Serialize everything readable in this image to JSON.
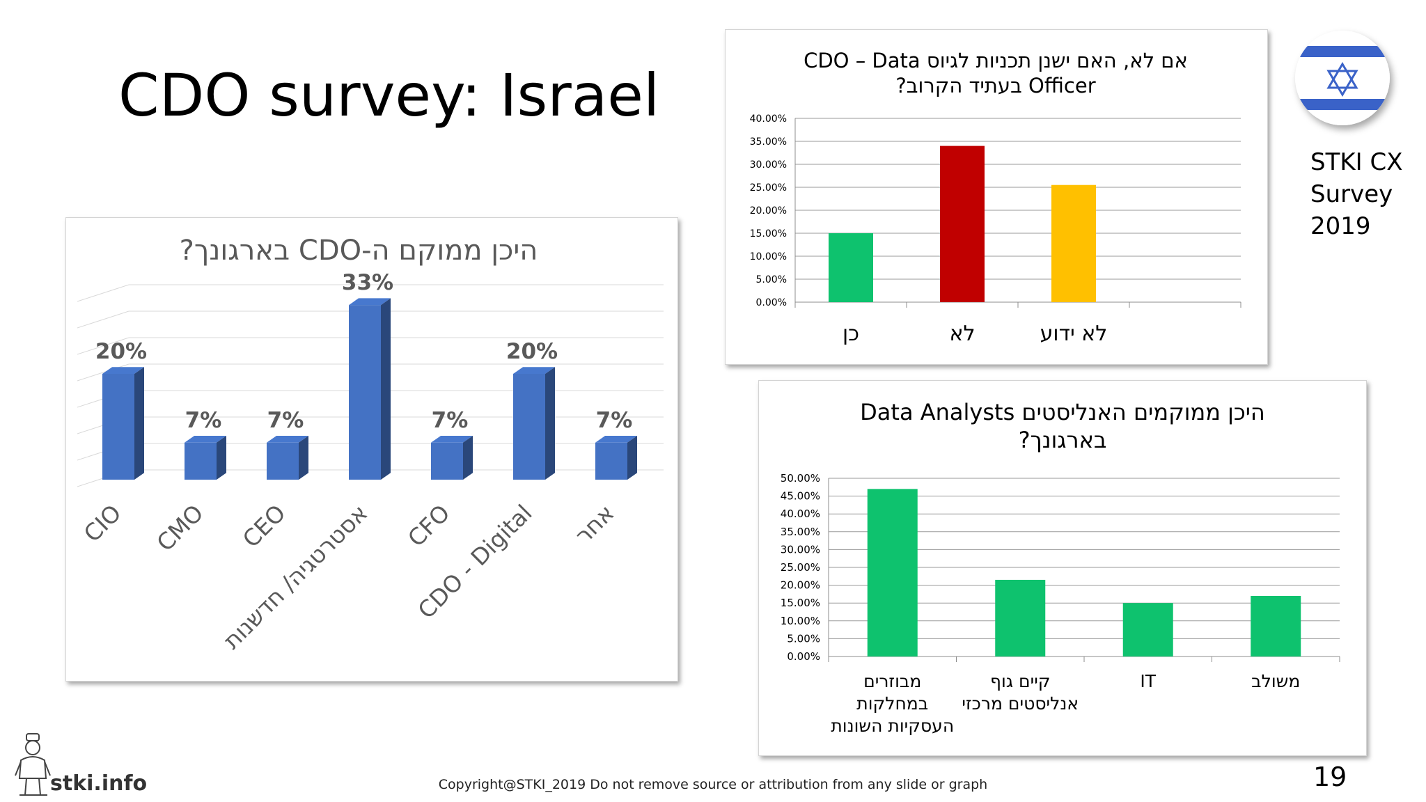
{
  "slide": {
    "title": "CDO survey: Israel",
    "side_label_lines": [
      "STKI CX",
      "Survey",
      "2019"
    ],
    "copyright": "Copyright@STKI_2019 Do not remove source or attribution from any slide or graph",
    "page_number": "19",
    "logo_text": "stki.info"
  },
  "icons": {
    "flag": "israel-flag-icon",
    "logo": "stki-mascot-icon"
  },
  "colors": {
    "blue_bar": "#4472c4",
    "green": "#0ec26e",
    "red": "#c00000",
    "yellow": "#ffc000",
    "grid": "#bfbfbf"
  },
  "chart_data": [
    {
      "id": "cdo_location",
      "type": "bar",
      "title": "היכן ממוקם ה-CDO בארגונך?",
      "categories": [
        "CIO",
        "CMO",
        "CEO",
        "אסטרטגיה/ חדשנות",
        "CFO",
        "CDO - Digital",
        "אחר"
      ],
      "values": [
        20,
        7,
        7,
        33,
        7,
        20,
        7
      ],
      "data_labels": [
        "20%",
        "7%",
        "7%",
        "33%",
        "7%",
        "20%",
        "7%"
      ],
      "ylim": [
        0,
        35
      ],
      "grid": true
    },
    {
      "id": "cdo_plans",
      "type": "bar",
      "title_lines": [
        "אם לא, האם ישנן תכניות לגיוס CDO – Data",
        "Officer בעתיד הקרוב?"
      ],
      "categories": [
        "כן",
        "לא",
        "לא ידוע"
      ],
      "values": [
        15,
        34,
        25.5
      ],
      "ylim": [
        0,
        40
      ],
      "yticks": [
        "0.00%",
        "5.00%",
        "10.00%",
        "15.00%",
        "20.00%",
        "25.00%",
        "30.00%",
        "35.00%",
        "40.00%"
      ],
      "grid": true
    },
    {
      "id": "analysts_location",
      "type": "bar",
      "title_lines": [
        "היכן ממוקמים האנליסטים Data Analysts",
        "בארגונך?"
      ],
      "categories": [
        [
          "מבוזרים",
          "במחלקות",
          "העסקיות השונות"
        ],
        [
          "קיים גוף",
          "אנליסטים מרכזי"
        ],
        [
          "IT"
        ],
        [
          "משולב"
        ]
      ],
      "values": [
        47,
        21.5,
        15,
        17
      ],
      "ylim": [
        0,
        50
      ],
      "yticks": [
        "0.00%",
        "5.00%",
        "10.00%",
        "15.00%",
        "20.00%",
        "25.00%",
        "30.00%",
        "35.00%",
        "40.00%",
        "45.00%",
        "50.00%"
      ],
      "grid": true
    }
  ]
}
